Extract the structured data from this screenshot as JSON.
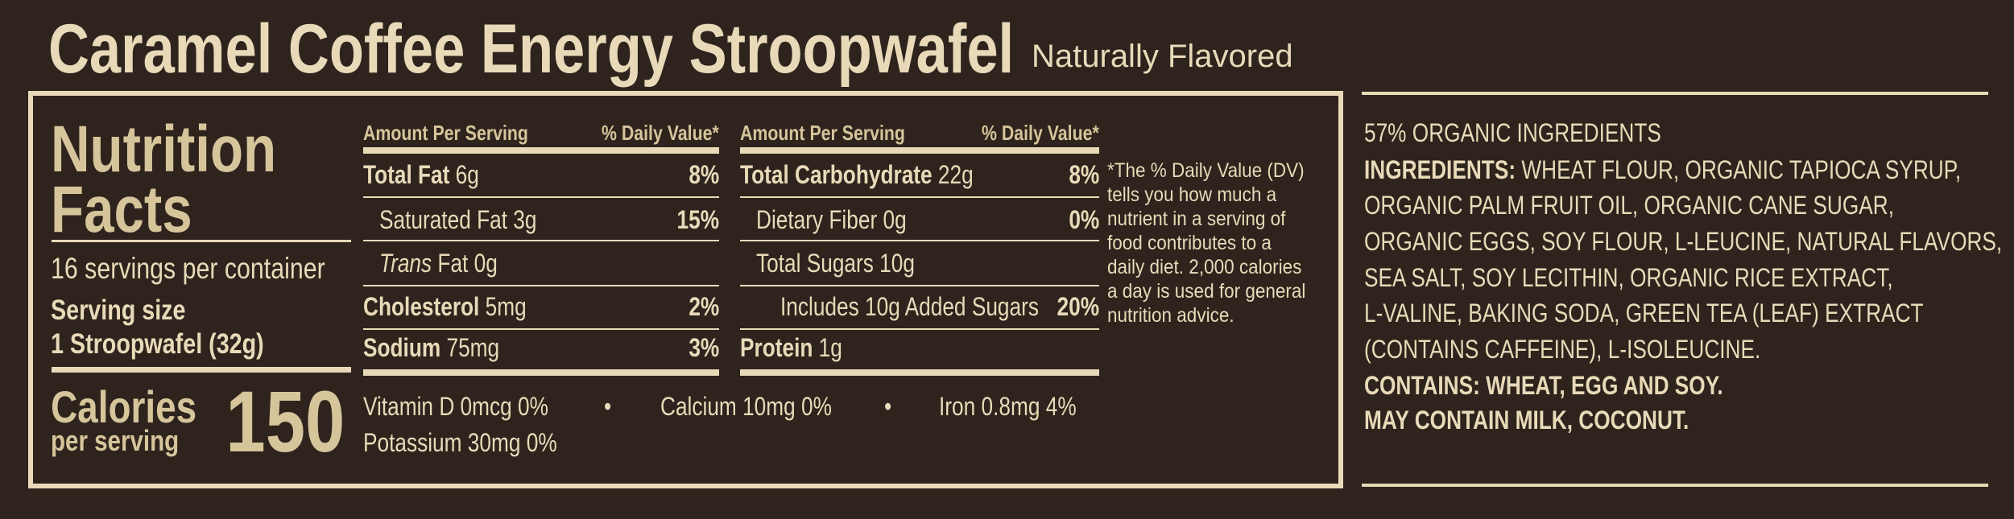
{
  "header": {
    "title": "Caramel Coffee Energy Stroopwafel",
    "subtitle": "Naturally Flavored"
  },
  "facts": {
    "heading_1": "Nutrition",
    "heading_2": "Facts",
    "servings": "16 servings per container",
    "serving_size_label": "Serving size",
    "serving_size": "1 Stroopwafel (32g)",
    "calories_label": "Calories",
    "calories_sub": "per serving",
    "calories": "150"
  },
  "left_table": {
    "header": [
      "Amount Per Serving",
      "% Daily Value*"
    ],
    "rows": [
      {
        "name": "Total Fat",
        "amount": "6g",
        "dv": "8%"
      },
      {
        "name": "Saturated Fat",
        "amount": "3g",
        "dv": "15%"
      },
      {
        "name_italic": "Trans",
        "name": "Fat",
        "amount": "0g"
      },
      {
        "name": "Cholesterol",
        "amount": "5mg",
        "dv": "2%"
      },
      {
        "name": "Sodium",
        "amount": "75mg",
        "dv": "3%"
      }
    ]
  },
  "right_table": {
    "header": [
      "Amount Per Serving",
      "% Daily Value*"
    ],
    "rows": [
      {
        "name": "Total Carbohydrate",
        "amount": "22g",
        "dv": "8%"
      },
      {
        "name": "Dietary Fiber",
        "amount": "0g",
        "dv": "0%"
      },
      {
        "name": "Total Sugars",
        "amount": "10g"
      },
      {
        "name": "Includes 10g Added Sugars",
        "dv": "20%"
      },
      {
        "name": "Protein",
        "amount": "1g"
      }
    ]
  },
  "vitamins": [
    "Vitamin D 0mcg 0%",
    "Calcium 10mg 0%",
    "Iron 0.8mg 4%",
    "Potassium 30mg 0%"
  ],
  "footnote": [
    "*The % Daily Value (DV)",
    "tells you how much a",
    "nutrient in a serving of",
    "food contributes to a",
    "daily diet. 2,000 calories",
    "a day is used for general",
    "nutrition advice."
  ],
  "ingredients": {
    "organic": "57% ORGANIC INGREDIENTS",
    "label": "INGREDIENTS:",
    "lines": [
      "WHEAT FLOUR, ORGANIC TAPIOCA SYRUP,",
      "ORGANIC PALM FRUIT OIL, ORGANIC CANE SUGAR,",
      "ORGANIC EGGS, SOY FLOUR, L-LEUCINE, NATURAL FLAVORS,",
      "SEA SALT, SOY LECITHIN, ORGANIC RICE EXTRACT,",
      "L-VALINE, BAKING SODA, GREEN TEA (LEAF) EXTRACT",
      "(CONTAINS CAFFEINE), L-ISOLEUCINE."
    ],
    "contains": "CONTAINS: WHEAT, EGG AND SOY.",
    "may_contain": "MAY CONTAIN MILK, COCONUT."
  }
}
